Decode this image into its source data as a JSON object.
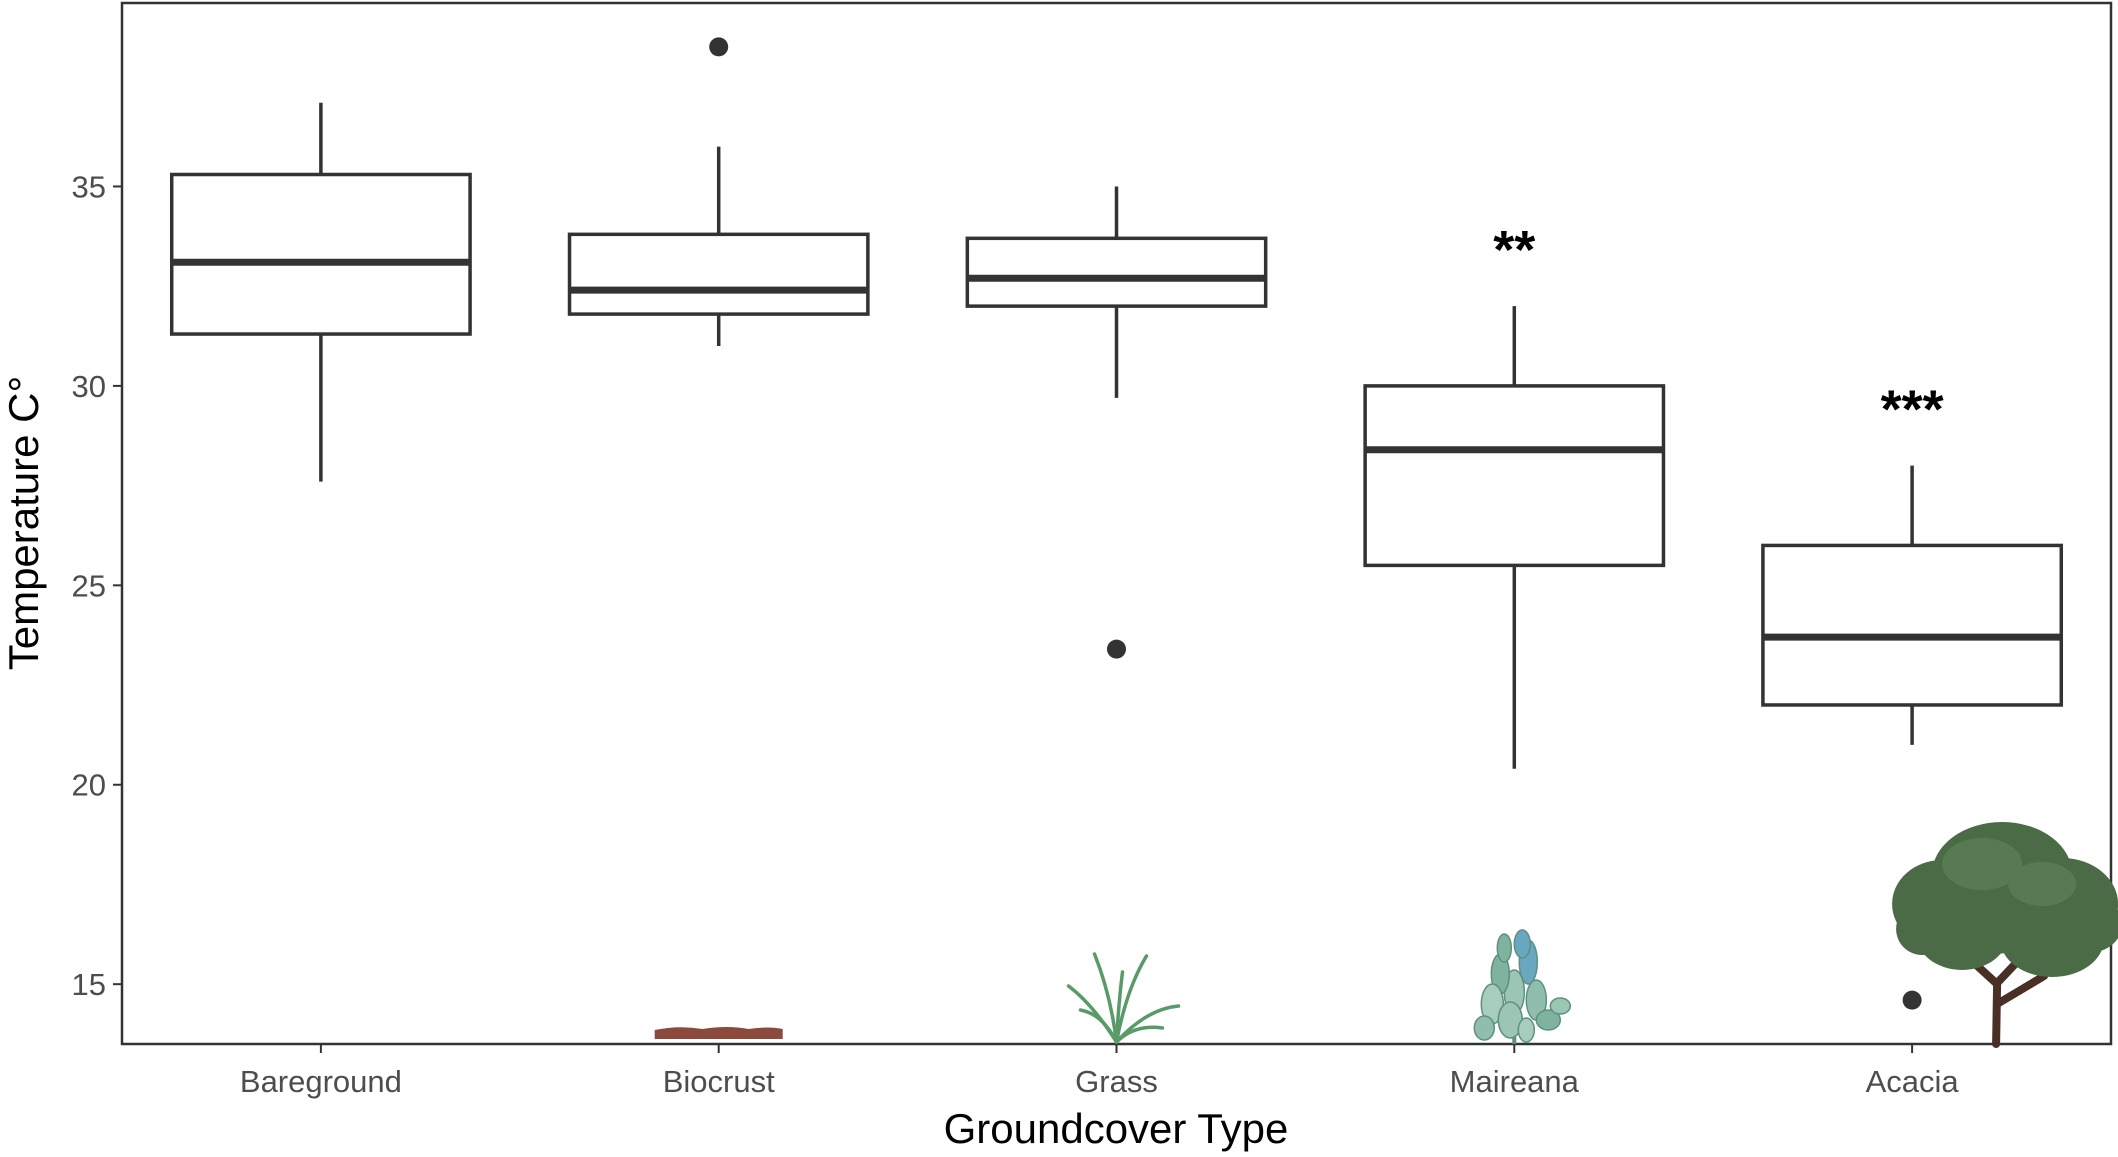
{
  "chart_data": {
    "type": "boxplot",
    "xlabel": "Groundcover Type",
    "ylabel": "Temperature C°",
    "ylim": [
      13.5,
      39.6
    ],
    "yticks": [
      15,
      20,
      25,
      30,
      35
    ],
    "grid": false,
    "legend": "none",
    "categories": [
      "Bareground",
      "Biocrust",
      "Grass",
      "Maireana",
      "Acacia"
    ],
    "boxes": [
      {
        "category": "Bareground",
        "min": 27.6,
        "q1": 31.3,
        "median": 33.1,
        "q3": 35.3,
        "max": 37.1,
        "outliers": [],
        "significance": ""
      },
      {
        "category": "Biocrust",
        "min": 31.0,
        "q1": 31.8,
        "median": 32.4,
        "q3": 33.8,
        "max": 36.0,
        "outliers": [
          38.5
        ],
        "significance": ""
      },
      {
        "category": "Grass",
        "min": 29.7,
        "q1": 32.0,
        "median": 32.7,
        "q3": 33.7,
        "max": 35.0,
        "outliers": [
          23.4
        ],
        "significance": ""
      },
      {
        "category": "Maireana",
        "min": 20.4,
        "q1": 25.5,
        "median": 28.4,
        "q3": 30.0,
        "max": 32.0,
        "outliers": [],
        "significance": "**"
      },
      {
        "category": "Acacia",
        "min": 21.0,
        "q1": 22.0,
        "median": 23.7,
        "q3": 26.0,
        "max": 28.0,
        "outliers": [
          14.6
        ],
        "significance": "***"
      }
    ],
    "illustrations": [
      {
        "category": "Biocrust",
        "icon": "biocrust-icon",
        "color": "#8b4a3c"
      },
      {
        "category": "Grass",
        "icon": "grass-icon",
        "color": "#5a9a68"
      },
      {
        "category": "Maireana",
        "icon": "saltbush-icon",
        "color": "#7fb3a0"
      },
      {
        "category": "Acacia",
        "icon": "tree-icon",
        "color": "#4a6b45"
      }
    ],
    "colors": {
      "box_stroke": "#333333",
      "box_fill": "#ffffff",
      "outlier": "#333333"
    }
  }
}
